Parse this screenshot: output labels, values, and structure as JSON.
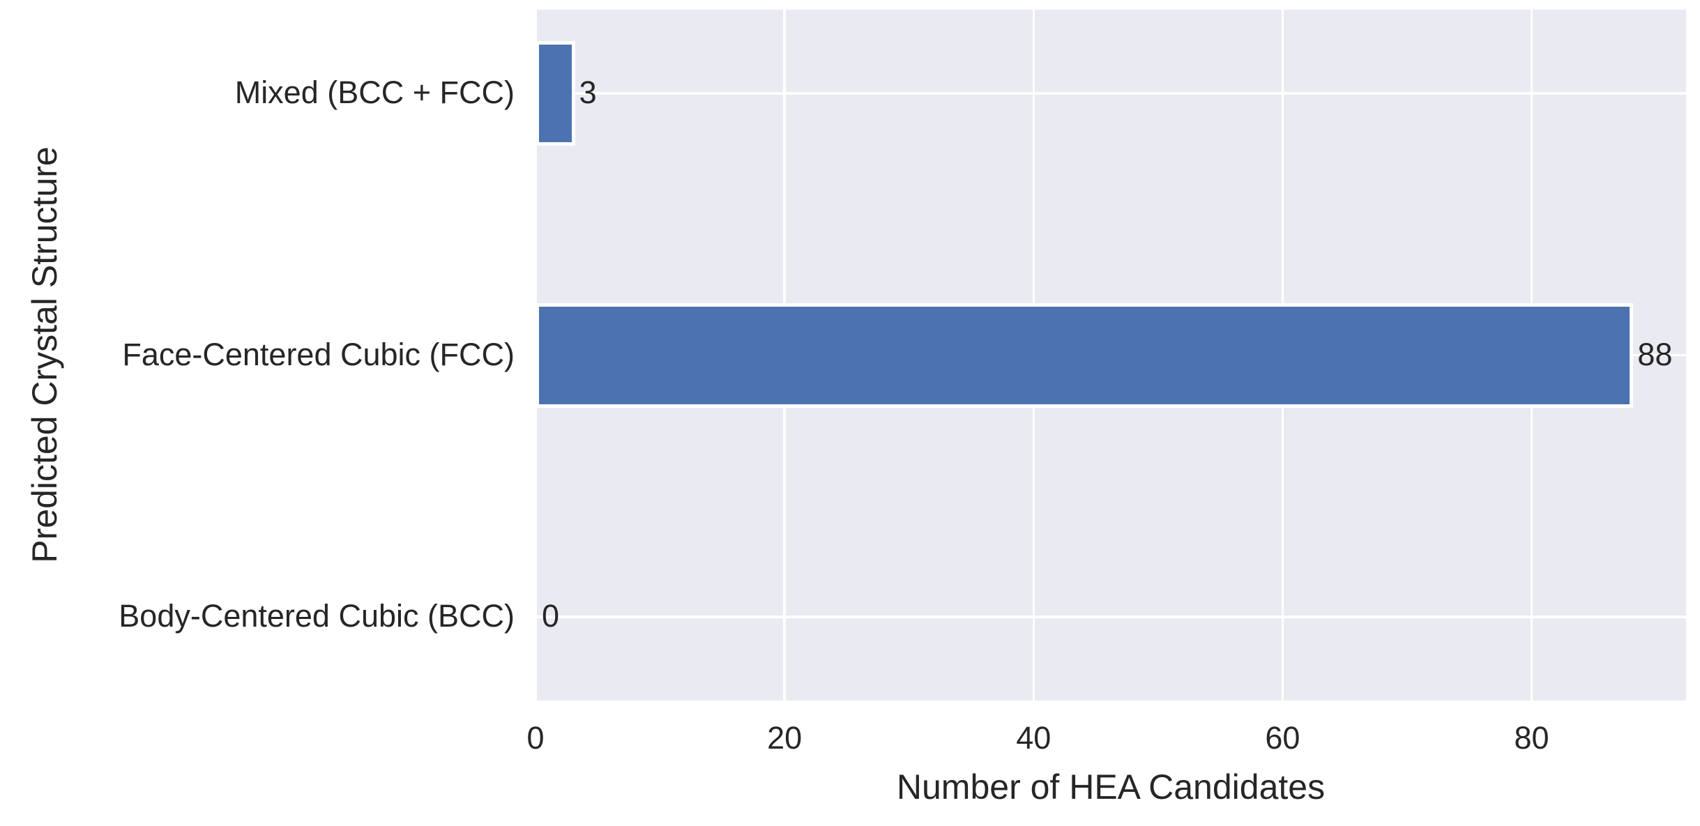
{
  "chart_data": {
    "type": "bar",
    "orientation": "horizontal",
    "title": "",
    "xlabel": "Number of HEA Candidates",
    "ylabel": "Predicted Crystal Structure",
    "categories": [
      "Mixed (BCC + FCC)",
      "Face-Centered Cubic (FCC)",
      "Body-Centered Cubic (BCC)"
    ],
    "values": [
      3,
      88,
      0
    ],
    "value_labels": [
      "3",
      "88",
      "0"
    ],
    "xticks": [
      0,
      20,
      40,
      60,
      80
    ],
    "xlim": [
      0,
      92.4
    ],
    "grid": true,
    "legend": false,
    "colors": {
      "bar": "#4C72B0",
      "bar_edge": "#FFFFFF",
      "plot_background": "#EAEAF2",
      "figure_background": "#FFFFFF",
      "grid": "#FFFFFF",
      "text": "#262626"
    }
  }
}
